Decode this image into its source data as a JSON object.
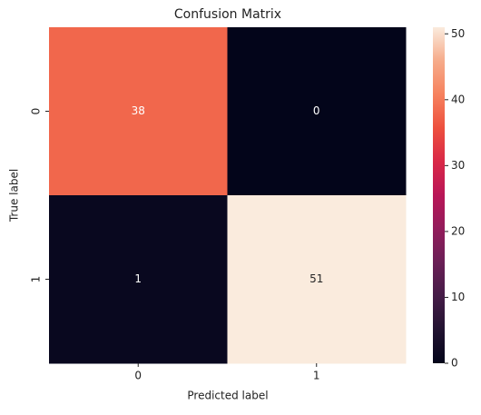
{
  "chart_data": {
    "type": "heatmap",
    "title": "Confusion Matrix",
    "x_label": "Predicted label",
    "y_label": "True label",
    "x_categories": [
      "0",
      "1"
    ],
    "y_categories": [
      "0",
      "1"
    ],
    "values": [
      [
        38,
        0
      ],
      [
        1,
        51
      ]
    ],
    "colormap": "rocket",
    "colorbar_lim": [
      0,
      51
    ],
    "colorbar_ticks": [
      0,
      10,
      20,
      30,
      40,
      50
    ]
  }
}
